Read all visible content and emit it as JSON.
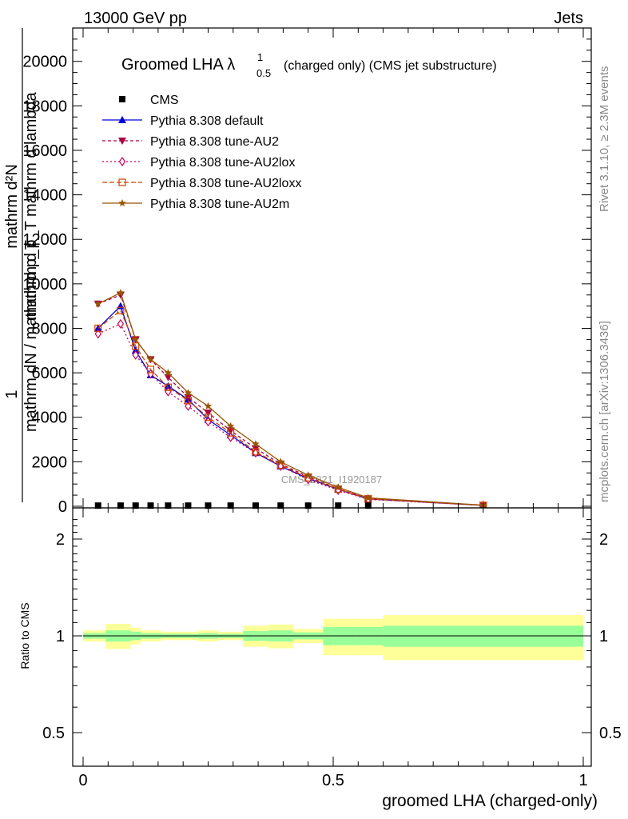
{
  "header": {
    "left": "13000 GeV pp",
    "right": "Jets"
  },
  "side_text": {
    "rivet": "Rivet 3.1.10, ≥ 2.3M events",
    "mcplots": "mcplots.cern.ch [arXiv:1306.3436]"
  },
  "watermark": "CMS_2021_I1920187",
  "chart_data": {
    "type": "line",
    "title_main": "Groomed LHA λ",
    "title_sup": "1",
    "title_sub": "0.5",
    "title_rest": "(charged only) (CMS jet substructure)",
    "xlabel": "groomed LHA (charged-only)",
    "ylabel_top": "mathrm d²N",
    "ylabel_mid": "mathrm d p_T mathrm d lambda",
    "ylabel_one": "1",
    "ylabel_bottom": "mathrm dN / mathrm d p_T",
    "ratio_ylabel": "Ratio to CMS",
    "xlim": [
      0,
      1
    ],
    "ylim": [
      0,
      21500
    ],
    "ratio_ylim": [
      0.4,
      2.4
    ],
    "x_ticks": [
      0,
      0.5,
      1
    ],
    "x_tick_labels": [
      "0",
      "0.5",
      "1"
    ],
    "y_ticks": [
      0,
      2000,
      4000,
      6000,
      8000,
      10000,
      12000,
      14000,
      16000,
      18000,
      20000
    ],
    "y_tick_labels": [
      "0",
      "2000",
      "4000",
      "6000",
      "8000",
      "10000",
      "12000",
      "14000",
      "16000",
      "18000",
      "20000"
    ],
    "ratio_ticks": [
      0.5,
      1,
      2
    ],
    "ratio_tick_labels": [
      "0.5",
      "1",
      "2"
    ],
    "cms": {
      "name": "CMS",
      "x": [
        0.03,
        0.075,
        0.105,
        0.135,
        0.17,
        0.21,
        0.25,
        0.295,
        0.345,
        0.395,
        0.45,
        0.51,
        0.57
      ],
      "y": [
        30,
        30,
        30,
        30,
        30,
        30,
        30,
        30,
        30,
        30,
        30,
        30,
        30
      ]
    },
    "series": [
      {
        "name": "Pythia 8.308 default",
        "color": "#0000dd",
        "dash": "",
        "marker": "triangle-up",
        "x": [
          0.03,
          0.075,
          0.105,
          0.135,
          0.17,
          0.21,
          0.25,
          0.295,
          0.345,
          0.395,
          0.45,
          0.51,
          0.57,
          0.8
        ],
        "y": [
          8000,
          9000,
          7000,
          5900,
          5400,
          4800,
          3900,
          3200,
          2400,
          1800,
          1250,
          760,
          330,
          40
        ]
      },
      {
        "name": "Pythia 8.308 tune-AU2",
        "color": "#aa0044",
        "dash": "4,3",
        "marker": "triangle-down",
        "x": [
          0.03,
          0.075,
          0.105,
          0.135,
          0.17,
          0.21,
          0.25,
          0.295,
          0.345,
          0.395,
          0.45,
          0.51,
          0.57,
          0.8
        ],
        "y": [
          9100,
          9500,
          7500,
          6600,
          5800,
          4900,
          4200,
          3400,
          2600,
          1900,
          1330,
          780,
          350,
          50
        ]
      },
      {
        "name": "Pythia 8.308 tune-AU2lox",
        "color": "#cc0055",
        "dash": "2,3",
        "marker": "diamond",
        "x": [
          0.03,
          0.075,
          0.105,
          0.135,
          0.17,
          0.21,
          0.25,
          0.295,
          0.345,
          0.395,
          0.45,
          0.51,
          0.57,
          0.8
        ],
        "y": [
          7750,
          8200,
          6800,
          5950,
          5150,
          4500,
          3800,
          3100,
          2400,
          1800,
          1200,
          720,
          310,
          40
        ]
      },
      {
        "name": "Pythia 8.308 tune-AU2loxx",
        "color": "#cc4400",
        "dash": "6,3",
        "marker": "square-open",
        "x": [
          0.03,
          0.075,
          0.105,
          0.135,
          0.17,
          0.21,
          0.25,
          0.295,
          0.345,
          0.395,
          0.45,
          0.51,
          0.57,
          0.8
        ],
        "y": [
          8000,
          8800,
          7200,
          6150,
          5350,
          4750,
          4000,
          3300,
          2450,
          1850,
          1280,
          770,
          330,
          40
        ]
      },
      {
        "name": "Pythia 8.308 tune-AU2m",
        "color": "#995500",
        "dash": "",
        "marker": "star",
        "x": [
          0.03,
          0.075,
          0.105,
          0.135,
          0.17,
          0.21,
          0.25,
          0.295,
          0.345,
          0.395,
          0.45,
          0.51,
          0.57,
          0.8
        ],
        "y": [
          9100,
          9600,
          7500,
          6600,
          6000,
          5100,
          4500,
          3600,
          2800,
          2000,
          1400,
          850,
          380,
          50
        ]
      }
    ],
    "ratio_bands": {
      "edges": [
        0,
        0.045,
        0.095,
        0.115,
        0.155,
        0.185,
        0.23,
        0.27,
        0.32,
        0.37,
        0.42,
        0.48,
        0.545,
        0.6,
        1.0
      ],
      "inner_lo": [
        0.98,
        0.96,
        0.97,
        0.98,
        0.985,
        0.985,
        0.98,
        0.985,
        0.965,
        0.96,
        0.975,
        0.935,
        0.935,
        0.925
      ],
      "inner_hi": [
        1.02,
        1.04,
        1.03,
        1.02,
        1.015,
        1.015,
        1.02,
        1.015,
        1.035,
        1.04,
        1.025,
        1.065,
        1.065,
        1.075
      ],
      "outer_lo": [
        0.96,
        0.91,
        0.94,
        0.96,
        0.97,
        0.97,
        0.96,
        0.97,
        0.925,
        0.915,
        0.95,
        0.87,
        0.87,
        0.84
      ],
      "outer_hi": [
        1.04,
        1.09,
        1.06,
        1.04,
        1.03,
        1.03,
        1.04,
        1.03,
        1.075,
        1.085,
        1.05,
        1.13,
        1.13,
        1.16
      ],
      "inner_color": "#99ff99",
      "outer_color": "#ffff99"
    }
  }
}
